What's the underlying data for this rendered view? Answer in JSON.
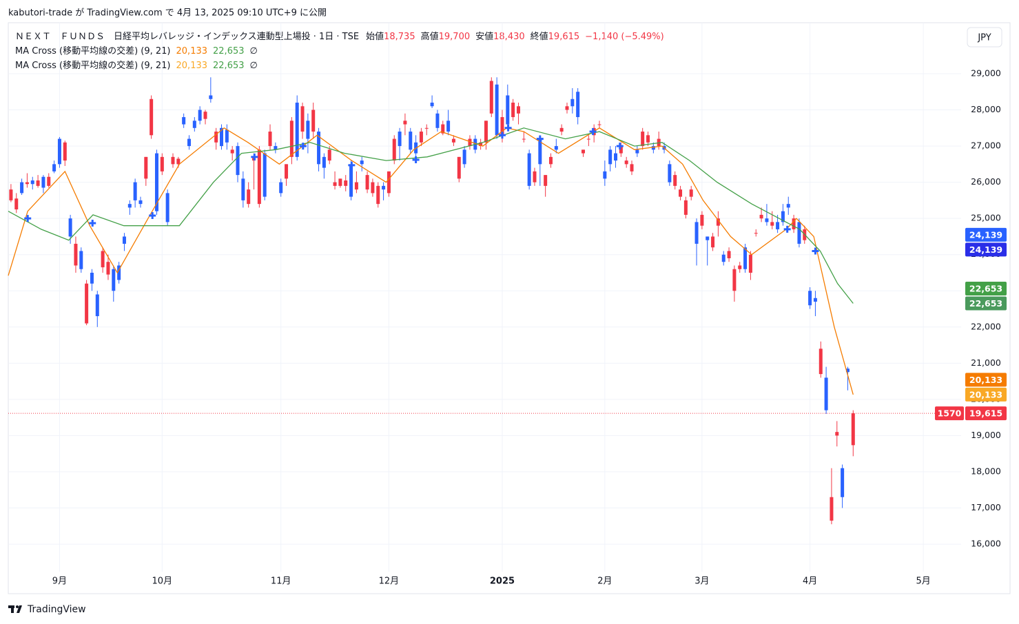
{
  "header": {
    "publisher": "kabutori-trade が TradingView.com で 4月 13, 2025 09:10 UTC+9 に公開"
  },
  "footer": {
    "brand": "TradingView"
  },
  "chart_data": {
    "type": "candlestick",
    "title": "ＮＥＸＴ　ＦＵＮＤＳ　日経平均レバレッジ・インデックス連動型上場投 · 1日 · TSE",
    "ohlc_legend": [
      {
        "name": "始値",
        "label": "18,735"
      },
      {
        "name": "高値",
        "label": "19,700"
      },
      {
        "name": "安値",
        "label": "18,430"
      },
      {
        "name": "終値",
        "label": "19,615"
      }
    ],
    "change_label": "−1,140 (−5.49%)",
    "indicators": [
      {
        "name": "MA Cross (移動平均線の交差) (9, 21)",
        "value_labels": [
          "20,133",
          "22,653"
        ],
        "colors": [
          "#f57c00",
          "#43a047"
        ],
        "symbol": "∅"
      },
      {
        "name": "MA Cross (移動平均線の交差) (9, 21)",
        "value_labels": [
          "20,133",
          "22,653"
        ],
        "colors": [
          "#f9a825",
          "#43a047"
        ],
        "symbol": "∅"
      }
    ],
    "currency": "JPY",
    "up_color": "#f23645",
    "down_color": "#2962ff",
    "xlim": [
      -0.5,
      176
    ],
    "ylim": [
      15240,
      30370
    ],
    "xticks": [
      {
        "value": 9,
        "label": "9月"
      },
      {
        "value": 28,
        "label": "10月"
      },
      {
        "value": 50,
        "label": "11月"
      },
      {
        "value": 70,
        "label": "12月"
      },
      {
        "value": 91,
        "label": "2025"
      },
      {
        "value": 110,
        "label": "2月"
      },
      {
        "value": 128,
        "label": "3月"
      },
      {
        "value": 148,
        "label": "4月"
      },
      {
        "value": 169,
        "label": "5月"
      }
    ],
    "yticks": [
      {
        "value": 16000,
        "label": "16,000"
      },
      {
        "value": 17000,
        "label": "17,000"
      },
      {
        "value": 18000,
        "label": "18,000"
      },
      {
        "value": 19000,
        "label": "19,000"
      },
      {
        "value": 20000,
        "label": "20,000"
      },
      {
        "value": 21000,
        "label": "21,000"
      },
      {
        "value": 22000,
        "label": "22,000"
      },
      {
        "value": 23000,
        "label": "23,000"
      },
      {
        "value": 24000,
        "label": "24,000"
      },
      {
        "value": 25000,
        "label": "25,000"
      },
      {
        "value": 26000,
        "label": "26,000"
      },
      {
        "value": 27000,
        "label": "27,000"
      },
      {
        "value": 28000,
        "label": "28,000"
      },
      {
        "value": 29000,
        "label": "29,000"
      }
    ],
    "grid": true,
    "candles": [
      [
        25500,
        25950,
        25450,
        25800
      ],
      [
        25250,
        25700,
        25150,
        25550
      ],
      [
        26000,
        26100,
        25650,
        25700
      ],
      [
        25950,
        26250,
        25850,
        26000
      ],
      [
        26050,
        26150,
        25800,
        25950
      ],
      [
        25900,
        26200,
        25850,
        26050
      ],
      [
        26150,
        26200,
        25700,
        25850
      ],
      [
        25900,
        26250,
        25850,
        26150
      ],
      [
        26500,
        26600,
        26250,
        26300
      ],
      [
        27200,
        27250,
        26400,
        26500
      ],
      [
        26600,
        27150,
        26450,
        27100
      ],
      [
        25000,
        25100,
        24300,
        24500
      ],
      [
        23700,
        24500,
        23500,
        24300
      ],
      [
        24100,
        24200,
        23500,
        23600
      ],
      [
        22100,
        23300,
        22050,
        23200
      ],
      [
        23500,
        23600,
        23000,
        23200
      ],
      [
        22900,
        23000,
        22000,
        22300
      ],
      [
        23650,
        24200,
        23500,
        24100
      ],
      [
        23450,
        24000,
        23300,
        23800
      ],
      [
        23600,
        23700,
        22700,
        23000
      ],
      [
        23700,
        23800,
        23200,
        23300
      ],
      [
        24500,
        24600,
        24100,
        24300
      ],
      [
        25400,
        25500,
        25100,
        25300
      ],
      [
        26000,
        26100,
        25300,
        25500
      ],
      [
        25500,
        25600,
        25300,
        25400
      ],
      [
        26100,
        26700,
        25900,
        26700
      ],
      [
        27300,
        28400,
        27200,
        28300
      ],
      [
        26800,
        26900,
        25100,
        25200
      ],
      [
        26300,
        26800,
        26200,
        26700
      ],
      [
        25700,
        25800,
        24800,
        24900
      ],
      [
        26500,
        26800,
        26400,
        26700
      ],
      [
        26500,
        26700,
        26400,
        26650
      ],
      [
        27800,
        27900,
        27500,
        27600
      ],
      [
        27200,
        27300,
        26900,
        27000
      ],
      [
        27700,
        27800,
        27400,
        27500
      ],
      [
        28000,
        28100,
        27600,
        27700
      ],
      [
        27750,
        28000,
        27600,
        27950
      ],
      [
        28400,
        28900,
        28200,
        28300
      ],
      [
        27100,
        27500,
        26900,
        27400
      ],
      [
        27500,
        27600,
        26900,
        27000
      ],
      [
        27450,
        27600,
        26900,
        27100
      ],
      [
        26800,
        27000,
        26600,
        26900
      ],
      [
        27000,
        27100,
        26000,
        26200
      ],
      [
        26100,
        26300,
        25300,
        25500
      ],
      [
        25400,
        26000,
        25300,
        25800
      ],
      [
        26600,
        26800,
        25800,
        26700
      ],
      [
        25400,
        27000,
        25300,
        26900
      ],
      [
        26800,
        26900,
        25500,
        25600
      ],
      [
        27000,
        27600,
        26900,
        27400
      ],
      [
        27000,
        27100,
        26800,
        26900
      ],
      [
        26000,
        26100,
        25600,
        25700
      ],
      [
        26100,
        26500,
        25900,
        26500
      ],
      [
        26700,
        27800,
        26500,
        27700
      ],
      [
        28200,
        28400,
        26600,
        26700
      ],
      [
        27400,
        28200,
        27200,
        28100
      ],
      [
        27700,
        27900,
        26800,
        27200
      ],
      [
        27400,
        28200,
        27200,
        28000
      ],
      [
        27400,
        27500,
        26300,
        26500
      ],
      [
        26700,
        26800,
        26100,
        26400
      ],
      [
        26600,
        27000,
        26500,
        26900
      ],
      [
        25900,
        26300,
        25800,
        26000
      ],
      [
        25900,
        26100,
        25850,
        26100
      ],
      [
        25900,
        26200,
        25750,
        26050
      ],
      [
        26500,
        26600,
        25500,
        25600
      ],
      [
        25800,
        26300,
        25700,
        26000
      ],
      [
        26600,
        26700,
        26300,
        26500
      ],
      [
        25800,
        26300,
        25700,
        26200
      ],
      [
        25700,
        26100,
        25600,
        26000
      ],
      [
        25400,
        26000,
        25300,
        25900
      ],
      [
        25900,
        26000,
        25500,
        25800
      ],
      [
        25700,
        26300,
        25600,
        26300
      ],
      [
        26600,
        27300,
        26500,
        27200
      ],
      [
        27400,
        27500,
        26600,
        27000
      ],
      [
        27600,
        27900,
        27300,
        27700
      ],
      [
        27400,
        27500,
        26800,
        26900
      ],
      [
        27100,
        27300,
        26600,
        26800
      ],
      [
        27100,
        27500,
        27000,
        27400
      ],
      [
        27500,
        27600,
        27300,
        27500
      ],
      [
        28200,
        28400,
        28050,
        28100
      ],
      [
        27900,
        28000,
        27400,
        27500
      ],
      [
        27350,
        27700,
        27300,
        27600
      ],
      [
        27700,
        28000,
        27300,
        27400
      ],
      [
        27100,
        27300,
        27000,
        27200
      ],
      [
        26100,
        26700,
        26000,
        26700
      ],
      [
        26900,
        27000,
        26400,
        26500
      ],
      [
        27000,
        27300,
        26900,
        27200
      ],
      [
        27200,
        27300,
        26800,
        26900
      ],
      [
        27000,
        27200,
        26900,
        27100
      ],
      [
        27100,
        27700,
        26900,
        27700
      ],
      [
        27900,
        28900,
        27800,
        28800
      ],
      [
        28700,
        28900,
        27200,
        27300
      ],
      [
        27300,
        28000,
        27100,
        27800
      ],
      [
        28400,
        28700,
        27500,
        27600
      ],
      [
        27800,
        28300,
        27700,
        28200
      ],
      [
        27900,
        28200,
        27600,
        28100
      ],
      [
        27200,
        27400,
        27100,
        27200
      ],
      [
        26800,
        26900,
        25800,
        25900
      ],
      [
        26000,
        26400,
        25900,
        26300
      ],
      [
        27200,
        27300,
        25900,
        26500
      ],
      [
        25900,
        26200,
        25600,
        26200
      ],
      [
        26500,
        26800,
        26400,
        26700
      ],
      [
        27000,
        27200,
        26800,
        26900
      ],
      [
        27400,
        27600,
        27300,
        27500
      ],
      [
        28000,
        28200,
        27900,
        28100
      ],
      [
        28300,
        28600,
        27900,
        28100
      ],
      [
        28500,
        28600,
        27600,
        27800
      ],
      [
        26800,
        26900,
        26700,
        26900
      ],
      [
        27200,
        27300,
        27000,
        27200
      ],
      [
        27300,
        27600,
        27100,
        27500
      ],
      [
        27600,
        27700,
        27500,
        27600
      ],
      [
        26300,
        26600,
        25900,
        26100
      ],
      [
        26900,
        27000,
        26300,
        26500
      ],
      [
        26800,
        27000,
        26400,
        26600
      ],
      [
        26800,
        27100,
        26700,
        27000
      ],
      [
        26500,
        26700,
        26400,
        26600
      ],
      [
        26300,
        26600,
        26200,
        26500
      ],
      [
        26900,
        27000,
        26700,
        26800
      ],
      [
        27000,
        27500,
        26900,
        27400
      ],
      [
        27100,
        27400,
        27000,
        27300
      ],
      [
        27000,
        27100,
        26800,
        26900
      ],
      [
        27000,
        27400,
        26900,
        27200
      ],
      [
        27000,
        27100,
        26800,
        26900
      ],
      [
        26500,
        26600,
        25900,
        26000
      ],
      [
        25900,
        26300,
        25800,
        26200
      ],
      [
        25600,
        25900,
        25500,
        25800
      ],
      [
        25100,
        25600,
        25000,
        25500
      ],
      [
        25600,
        25900,
        25500,
        25800
      ],
      [
        24900,
        25000,
        23700,
        24300
      ],
      [
        24800,
        25200,
        24700,
        25100
      ],
      [
        24500,
        24500,
        23700,
        24400
      ],
      [
        24200,
        24600,
        24100,
        24500
      ],
      [
        24800,
        25200,
        24500,
        25000
      ],
      [
        24000,
        24100,
        23700,
        23800
      ],
      [
        23900,
        24200,
        23800,
        24100
      ],
      [
        23000,
        23700,
        22700,
        23600
      ],
      [
        23600,
        23800,
        23500,
        23700
      ],
      [
        24200,
        24300,
        23500,
        23600
      ],
      [
        23500,
        24100,
        23300,
        24000
      ],
      [
        24600,
        24700,
        24500,
        24600
      ],
      [
        25000,
        25300,
        24900,
        25100
      ],
      [
        25000,
        25400,
        24800,
        24900
      ],
      [
        24800,
        25200,
        24700,
        24900
      ],
      [
        24900,
        25100,
        24600,
        24700
      ],
      [
        25200,
        25400,
        24800,
        24900
      ],
      [
        25400,
        25600,
        25100,
        25300
      ],
      [
        24700,
        25100,
        24600,
        25000
      ],
      [
        24900,
        25000,
        24200,
        24300
      ],
      [
        24400,
        24800,
        24300,
        24700
      ],
      [
        23000,
        23100,
        22500,
        22600
      ],
      [
        22800,
        23000,
        22300,
        22700
      ],
      [
        20700,
        21600,
        20600,
        21400
      ],
      [
        20600,
        20900,
        19600,
        19700
      ],
      [
        16650,
        18100,
        16550,
        17300
      ],
      [
        19000,
        19400,
        18700,
        19100
      ],
      [
        18100,
        18200,
        17000,
        17300
      ],
      [
        20850,
        20900,
        20250,
        20755
      ],
      [
        18735,
        19700,
        18430,
        19615
      ]
    ],
    "series": [
      {
        "color": "#f57c00",
        "x": [
          -0.5,
          3.1,
          10,
          14.6,
          19.7,
          25.4,
          31.2,
          39.5,
          43.9,
          49.7,
          56.7,
          63.1,
          69.5,
          74.6,
          79.7,
          87.4,
          91.8,
          95,
          101.4,
          109,
          115.5,
          120.6,
          124.4,
          128.2,
          133.3,
          137.2,
          143.6,
          145.5,
          148.7,
          152.5,
          156
        ],
        "values": [
          23420,
          25200,
          26300,
          24800,
          23500,
          25000,
          26500,
          27500,
          27100,
          26500,
          27300,
          26600,
          26000,
          26900,
          27400,
          27000,
          27500,
          27400,
          26800,
          27500,
          26900,
          27000,
          26500,
          25500,
          24500,
          24000,
          24700,
          25000,
          24500,
          22000,
          20133
        ]
      },
      {
        "color": "#43a047",
        "x": [
          -0.5,
          5.6,
          10.7,
          15.2,
          20.9,
          31.2,
          37.5,
          42.7,
          49,
          55.4,
          61.8,
          69.5,
          77.1,
          87.4,
          95,
          102.7,
          109,
          115.5,
          120.6,
          125.7,
          130.8,
          137.2,
          142.3,
          146.1,
          149.9,
          153.1,
          156
        ],
        "values": [
          25200,
          24700,
          24400,
          25100,
          24800,
          24800,
          26000,
          26800,
          26900,
          27100,
          26800,
          26600,
          26700,
          27100,
          27500,
          27200,
          27400,
          27000,
          27100,
          26600,
          26000,
          25400,
          25000,
          24700,
          24100,
          23200,
          22653
        ]
      }
    ],
    "crosses": {
      "color": "#2962ff",
      "x": [
        3.1,
        15.1,
        26.2,
        45.1,
        54.1,
        63.1,
        75,
        91,
        92.1,
        98,
        107.8,
        112.8,
        143.8,
        149
      ],
      "values": [
        25000,
        24870,
        25080,
        26700,
        27000,
        26470,
        26620,
        27300,
        27500,
        27200,
        27400,
        27000,
        24700,
        24100
      ]
    },
    "price_tags": [
      {
        "value": 24139,
        "label": "24,139",
        "colors": [
          "#2962ff",
          "#2a2ee8"
        ]
      },
      {
        "value": 22653,
        "label": "22,653",
        "colors": [
          "#43a047",
          "#4a9a5c"
        ]
      },
      {
        "value": 20133,
        "label": "20,133",
        "colors": [
          "#f57c00",
          "#f9a825"
        ]
      }
    ],
    "last_price_tag": {
      "symbol": "1570",
      "label": "19,615",
      "color": "#f23645"
    }
  }
}
